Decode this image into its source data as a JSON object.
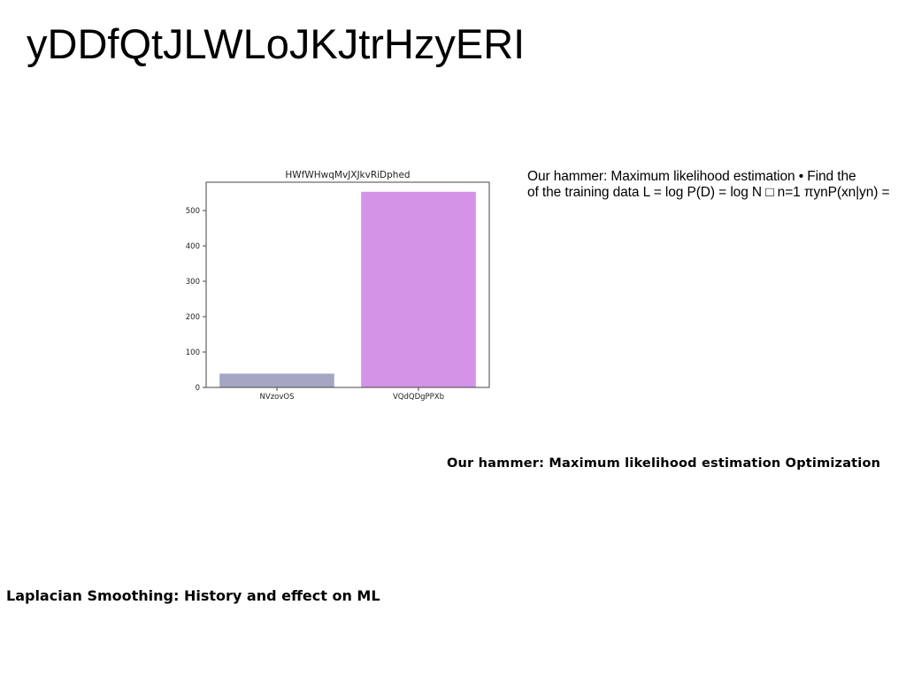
{
  "page": {
    "title": "yDDfQtJLWLoJKJtrHzyERI",
    "body_text_line1": "Our hammer: Maximum likelihood estimation • Find the",
    "body_text_line2": "of the training data L = log P(D) = log N □ n=1 πynP(xn|yn) =",
    "bold_heading": "Our hammer: Maximum likelihood estimation Optimization",
    "subheading": "Laplacian Smoothing: History and effect on ML"
  },
  "chart_data": {
    "type": "bar",
    "title": "HWfWHwqMvJXJkvRiDphed",
    "categories": [
      "NVzovOS",
      "VQdQDgPPXb"
    ],
    "values": [
      39,
      553
    ],
    "colors": [
      "#a4a6c4",
      "#d593e8"
    ],
    "ylim": [
      0,
      580
    ],
    "yticks": [
      "0",
      "100",
      "200",
      "300",
      "400",
      "500"
    ],
    "ytick_values": [
      0,
      100,
      200,
      300,
      400,
      500
    ],
    "xlabel": "",
    "ylabel": "",
    "grid": false
  }
}
